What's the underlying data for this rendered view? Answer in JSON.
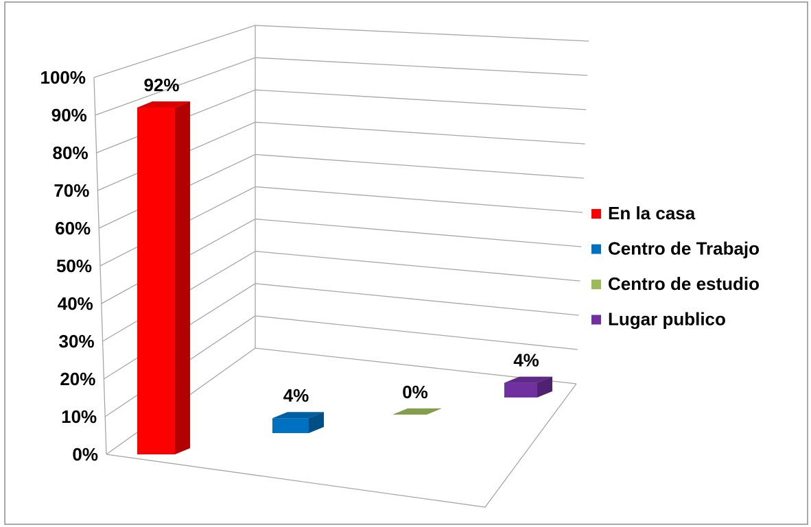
{
  "chart_data": {
    "type": "bar3d",
    "series": [
      {
        "name": "En la casa",
        "color": "#ff0000",
        "values": [
          92
        ],
        "value_labels": [
          "92%"
        ]
      },
      {
        "name": "Centro de Trabajo",
        "color": "#0070c0",
        "values": [
          4
        ],
        "value_labels": [
          "4%"
        ]
      },
      {
        "name": "Centro de estudio",
        "color": "#9bbb59",
        "values": [
          0
        ],
        "value_labels": [
          "0%"
        ]
      },
      {
        "name": "Lugar publico",
        "color": "#7030a0",
        "values": [
          4
        ],
        "value_labels": [
          "4%"
        ]
      }
    ],
    "ylim": [
      0,
      100
    ],
    "yticks": [
      {
        "value": 0,
        "label": "0%"
      },
      {
        "value": 10,
        "label": "10%"
      },
      {
        "value": 20,
        "label": "20%"
      },
      {
        "value": 30,
        "label": "30%"
      },
      {
        "value": 40,
        "label": "40%"
      },
      {
        "value": 50,
        "label": "50%"
      },
      {
        "value": 60,
        "label": "60%"
      },
      {
        "value": 70,
        "label": "70%"
      },
      {
        "value": 80,
        "label": "80%"
      },
      {
        "value": 90,
        "label": "90%"
      },
      {
        "value": 100,
        "label": "100%"
      }
    ],
    "grid": true,
    "legend": "right"
  }
}
